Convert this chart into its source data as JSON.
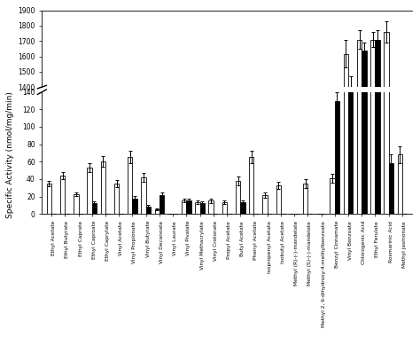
{
  "categories": [
    "Ethyl Acetate",
    "Ethyl Butyrate",
    "Ethyl Caprate",
    "Ethyl Caproate",
    "Ethyl Caprylate",
    "Vinyl Acetate",
    "Vinyl Propionate",
    "Vinyl Butyrate",
    "Vinyl Decanoate",
    "Vinyl Laurate",
    "Vinyl Pivalate",
    "Vinyl Methacrylate",
    "Vinyl Crotonate",
    "Propyl Acetate",
    "Butyl Acetate",
    "Phenyl Acetate",
    "Isopropenyl Acetate",
    "Isobutyl Acetate",
    "Methyl (R)-(-)-mandelate",
    "Methyl (S)-(-)-mandelate",
    "Methyl 2, 6-dihydroxy-4-methylbenzoate",
    "Benzyl Cinnamate",
    "Vinyl Benzoate",
    "Chlorogenic Acid",
    "Ethyl Ferulate",
    "Rosmarinic Acid",
    "Methyl jasmonate"
  ],
  "white_bars": [
    35,
    44,
    23,
    53,
    60,
    35,
    65,
    42,
    5,
    0,
    15,
    13,
    15,
    13,
    38,
    65,
    22,
    33,
    0,
    35,
    0,
    41,
    1615,
    1710,
    1710,
    1760,
    68
  ],
  "black_bars": [
    0,
    0,
    0,
    12,
    0,
    0,
    18,
    8,
    22,
    0,
    15,
    12,
    0,
    0,
    13,
    0,
    0,
    0,
    0,
    0,
    0,
    130,
    1390,
    1640,
    1710,
    58,
    0
  ],
  "white_errors": [
    3,
    4,
    2,
    5,
    6,
    4,
    7,
    5,
    1,
    0,
    2,
    2,
    3,
    2,
    5,
    7,
    3,
    4,
    0,
    5,
    0,
    5,
    90,
    60,
    50,
    70,
    10
  ],
  "black_errors": [
    0,
    0,
    0,
    2,
    0,
    0,
    3,
    2,
    3,
    0,
    2,
    2,
    0,
    0,
    2,
    0,
    0,
    0,
    0,
    0,
    0,
    10,
    80,
    50,
    60,
    10,
    0
  ],
  "ylabel": "Specific Activity (nmol/mg/min)",
  "bar_width": 0.35,
  "lower_ylim": [
    0,
    140
  ],
  "upper_ylim": [
    1400,
    1900
  ],
  "lower_yticks": [
    0,
    20,
    40,
    60,
    80,
    100,
    120,
    140
  ],
  "upper_yticks": [
    1500,
    1600,
    1700,
    1800,
    1900
  ],
  "upper_ytick_extra": 1400,
  "white_color": "white",
  "black_color": "black",
  "edge_color": "black",
  "figsize": [
    4.74,
    3.89
  ],
  "dpi": 100
}
